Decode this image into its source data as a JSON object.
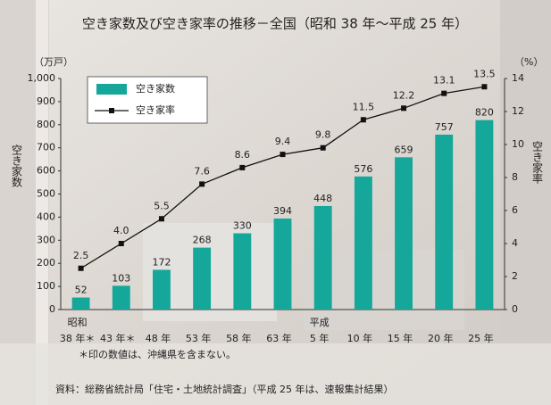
{
  "chart_data": {
    "type": "bar-line",
    "title": "空き家数及び空き家率の推移－全国（昭和 38 年～平成 25 年）",
    "y_unit": "（万戸）",
    "y2_unit": "（%）",
    "y_label": "空き家数",
    "y2_label": "空き家率",
    "categories": [
      [
        "昭和",
        "38 年＊"
      ],
      [
        "43 年＊"
      ],
      [
        "48 年"
      ],
      [
        "53 年"
      ],
      [
        "58 年"
      ],
      [
        "63 年"
      ],
      [
        "平成",
        "5 年"
      ],
      [
        "10 年"
      ],
      [
        "15 年"
      ],
      [
        "20 年"
      ],
      [
        "25 年"
      ]
    ],
    "series": [
      {
        "name": "空き家数",
        "type": "bar",
        "color": "#14a79a",
        "values": [
          52,
          103,
          172,
          268,
          330,
          394,
          448,
          576,
          659,
          757,
          820
        ]
      },
      {
        "name": "空き家率",
        "type": "line",
        "axis": "y2",
        "color": "#111111",
        "values": [
          2.5,
          4.0,
          5.5,
          7.6,
          8.6,
          9.4,
          9.8,
          11.5,
          12.2,
          13.1,
          13.5
        ],
        "value_labels": [
          "2.5",
          "4.0",
          "5.5",
          "7.6",
          "8.6",
          "9.4",
          "9.8",
          "11.5",
          "12.2",
          "13.1",
          "13.5"
        ]
      }
    ],
    "ylim": [
      0,
      1000
    ],
    "yticks": [
      0,
      100,
      200,
      300,
      400,
      500,
      600,
      700,
      800,
      900,
      {
        "value": 1000,
        "label": "1,000"
      }
    ],
    "y2lim": [
      0,
      14
    ],
    "y2ticks": [
      0,
      2,
      4,
      6,
      8,
      10,
      12,
      14
    ],
    "note": "＊印の数値は、沖縄県を含まない。",
    "source": "資料：総務省統計局「住宅・土地統計調査」（平成 25 年は、速報集計結果）"
  }
}
